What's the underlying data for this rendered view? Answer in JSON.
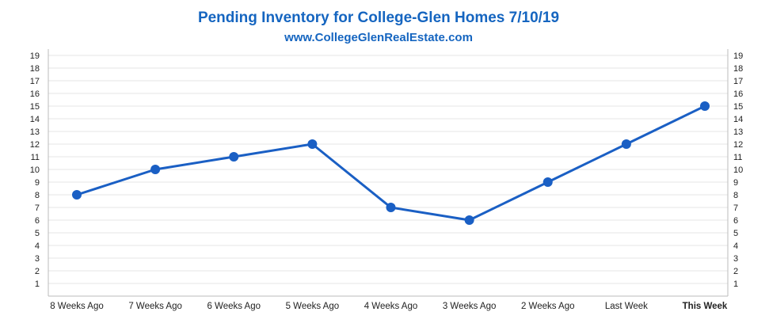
{
  "chart_data": {
    "type": "line",
    "title": "Pending Inventory for College-Glen Homes 7/10/19",
    "subtitle": "www.CollegeGlenRealEstate.com",
    "categories": [
      "8 Weeks Ago",
      "7 Weeks Ago",
      "6 Weeks Ago",
      "5 Weeks Ago",
      "4 Weeks Ago",
      "3 Weeks Ago",
      "2 Weeks Ago",
      "Last Week",
      "This Week"
    ],
    "series": [
      {
        "values": [
          8,
          10,
          11,
          12,
          7,
          6,
          9,
          12,
          15
        ]
      }
    ],
    "ylim": [
      0,
      19
    ],
    "yticks": [
      1,
      2,
      3,
      4,
      5,
      6,
      7,
      8,
      9,
      10,
      11,
      12,
      13,
      14,
      15,
      16,
      17,
      18,
      19
    ],
    "y_axis_both_sides": true,
    "highlighted_category": "This Week",
    "grid": true,
    "colors": {
      "title": "#1565c0",
      "line": "#1a5fc4",
      "highlight_label": "#1565c0",
      "grid": "#e6e6e6",
      "axis": "#bbbbbb"
    }
  }
}
